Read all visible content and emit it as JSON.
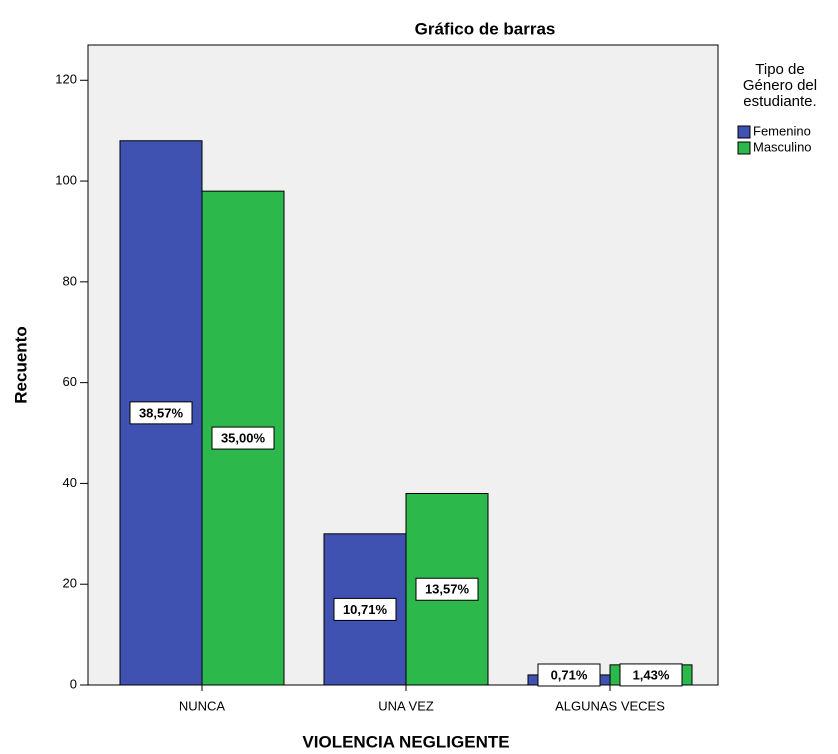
{
  "chart_data": {
    "type": "bar",
    "title": "Gráfico de barras",
    "x_label": "VIOLENCIA NEGLIGENTE",
    "y_label": "Recuento",
    "legend_title": [
      "Tipo de",
      "Género del",
      "estudiante."
    ],
    "categories": [
      "NUNCA",
      "UNA VEZ",
      "ALGUNAS VECES"
    ],
    "series": [
      {
        "name": "Femenino",
        "color": "#3f51b1",
        "values": [
          108,
          30,
          2
        ],
        "data_labels": [
          "38,57%",
          "10,71%",
          "0,71%"
        ]
      },
      {
        "name": "Masculino",
        "color": "#2db84b",
        "values": [
          98,
          38,
          4
        ],
        "data_labels": [
          "35,00%",
          "13,57%",
          "1,43%"
        ]
      }
    ],
    "ylim": [
      0,
      127
    ],
    "yticks": [
      0,
      20,
      40,
      60,
      80,
      100,
      120
    ]
  }
}
